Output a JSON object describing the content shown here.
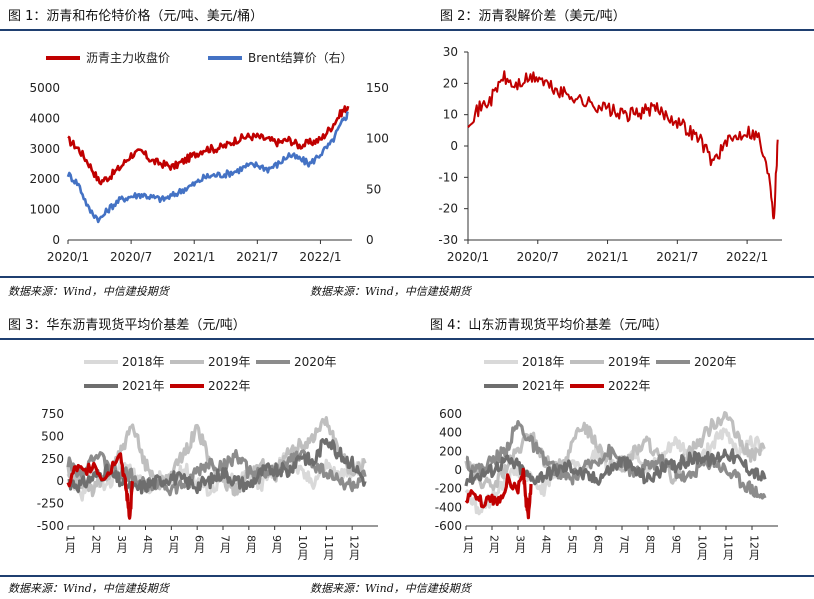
{
  "panels": [
    {
      "title": "图 1：沥青和布伦特价格（元/吨、美元/桶）",
      "source": "数据来源：Wind，中信建投期货",
      "chart_data": {
        "type": "line",
        "legend_placement": "top-left",
        "x_ticks": [
          "2020/1",
          "2020/7",
          "2021/1",
          "2021/7",
          "2022/1"
        ],
        "y_left": {
          "ticks": [
            "0",
            "1000",
            "2000",
            "3000",
            "4000",
            "5000"
          ],
          "ylim": [
            0,
            5000
          ]
        },
        "y_right": {
          "ticks": [
            "0",
            "50",
            "100",
            "150"
          ],
          "ylim": [
            0,
            150
          ]
        },
        "series": [
          {
            "name": "沥青主力收盘价",
            "axis": "left",
            "color": "#c00000",
            "x": [
              "2020-01",
              "2020-02",
              "2020-03",
              "2020-04",
              "2020-05",
              "2020-06",
              "2020-07",
              "2020-08",
              "2020-09",
              "2020-10",
              "2020-11",
              "2020-12",
              "2021-01",
              "2021-02",
              "2021-03",
              "2021-04",
              "2021-05",
              "2021-06",
              "2021-07",
              "2021-08",
              "2021-09",
              "2021-10",
              "2021-11",
              "2021-12",
              "2022-01",
              "2022-02",
              "2022-03",
              "2022-03-20"
            ],
            "y": [
              3300,
              3000,
              2500,
              1900,
              2100,
              2400,
              2800,
              2900,
              2600,
              2500,
              2400,
              2600,
              2800,
              3000,
              3000,
              3100,
              3300,
              3400,
              3400,
              3300,
              3200,
              3300,
              3100,
              3200,
              3300,
              3700,
              4200,
              4400
            ]
          },
          {
            "name": "Brent结算价（右）",
            "axis": "right",
            "color": "#4472c4",
            "x": [
              "2020-01",
              "2020-02",
              "2020-03",
              "2020-04",
              "2020-05",
              "2020-06",
              "2020-07",
              "2020-08",
              "2020-09",
              "2020-10",
              "2020-11",
              "2020-12",
              "2021-01",
              "2021-02",
              "2021-03",
              "2021-04",
              "2021-05",
              "2021-06",
              "2021-07",
              "2021-08",
              "2021-09",
              "2021-10",
              "2021-11",
              "2021-12",
              "2022-01",
              "2022-02",
              "2022-03",
              "2022-03-20"
            ],
            "y": [
              65,
              55,
              30,
              20,
              32,
              40,
              43,
              45,
              42,
              40,
              44,
              50,
              55,
              62,
              64,
              65,
              68,
              73,
              74,
              70,
              75,
              84,
              80,
              75,
              85,
              95,
              115,
              125
            ]
          }
        ]
      }
    },
    {
      "title": "图 2：沥青裂解价差（美元/吨）",
      "chart_data": {
        "type": "line",
        "x_ticks": [
          "2020/1",
          "2020/7",
          "2021/1",
          "2021/7",
          "2022/1"
        ],
        "y_ticks": [
          "-30",
          "-20",
          "-10",
          "0",
          "10",
          "20",
          "30"
        ],
        "ylim": [
          -30,
          30
        ],
        "series": [
          {
            "color": "#c00000",
            "x": [
              "2020-01",
              "2020-02",
              "2020-03",
              "2020-04",
              "2020-05",
              "2020-06",
              "2020-07",
              "2020-08",
              "2020-09",
              "2020-10",
              "2020-11",
              "2020-12",
              "2021-01",
              "2021-02",
              "2021-03",
              "2021-04",
              "2021-05",
              "2021-06",
              "2021-07",
              "2021-08",
              "2021-09",
              "2021-10",
              "2021-11",
              "2021-12",
              "2022-01",
              "2022-02",
              "2022-03",
              "2022-03-10",
              "2022-03-20"
            ],
            "y": [
              8,
              12,
              15,
              22,
              19,
              21,
              22,
              19,
              17,
              16,
              14,
              13,
              12,
              10,
              10,
              11,
              12,
              10,
              8,
              5,
              2,
              -5,
              0,
              3,
              5,
              3,
              -12,
              -23,
              2
            ]
          }
        ]
      }
    },
    {
      "title": "图 3：华东沥青现货平均价基差（元/吨）",
      "source": "数据来源：Wind，中信建投期货",
      "chart_data": {
        "type": "line",
        "legend_placement": "top",
        "x_ticks": [
          "1月",
          "2月",
          "3月",
          "4月",
          "5月",
          "6月",
          "7月",
          "8月",
          "9月",
          "10月",
          "11月",
          "12月"
        ],
        "y_ticks": [
          "-500",
          "-250",
          "0",
          "250",
          "500",
          "750"
        ],
        "ylim": [
          -500,
          750
        ],
        "series": [
          {
            "name": "2018年",
            "color": "#d9d9d9",
            "x": [
              1,
              1.5,
              2,
              2.5,
              3,
              3.5,
              4,
              4.5,
              5,
              5.5,
              6,
              6.5,
              7,
              7.5,
              8,
              8.5,
              9,
              9.5,
              10,
              10.5,
              11,
              11.5,
              12,
              12.5
            ],
            "y": [
              50,
              -200,
              100,
              -100,
              200,
              100,
              -100,
              50,
              -50,
              150,
              0,
              -100,
              50,
              0,
              100,
              -50,
              150,
              300,
              100,
              0,
              200,
              50,
              100,
              200
            ]
          },
          {
            "name": "2019年",
            "color": "#bfbfbf",
            "x": [
              1,
              1.5,
              2,
              2.5,
              3,
              3.5,
              4,
              4.5,
              5,
              5.5,
              6,
              6.5,
              7,
              7.5,
              8,
              8.5,
              9,
              9.5,
              10,
              10.5,
              11,
              11.5,
              12,
              12.5
            ],
            "y": [
              100,
              0,
              -100,
              50,
              300,
              600,
              200,
              -50,
              100,
              300,
              600,
              200,
              0,
              -100,
              100,
              200,
              50,
              300,
              400,
              500,
              700,
              300,
              100,
              200
            ]
          },
          {
            "name": "2020年",
            "color": "#8c8c8c",
            "x": [
              1,
              1.5,
              2,
              2.5,
              3,
              3.5,
              4,
              4.5,
              5,
              5.5,
              6,
              6.5,
              7,
              7.5,
              8,
              8.5,
              9,
              9.5,
              10,
              10.5,
              11,
              11.5,
              12,
              12.5
            ],
            "y": [
              200,
              100,
              300,
              200,
              100,
              50,
              -50,
              0,
              -100,
              -50,
              100,
              200,
              150,
              300,
              100,
              50,
              100,
              200,
              300,
              200,
              100,
              0,
              -50,
              50
            ]
          },
          {
            "name": "2021年",
            "color": "#6e6e6e",
            "x": [
              1,
              1.5,
              2,
              2.5,
              3,
              3.5,
              4,
              4.5,
              5,
              5.5,
              6,
              6.5,
              7,
              7.5,
              8,
              8.5,
              9,
              9.5,
              10,
              10.5,
              11,
              11.5,
              12,
              12.5
            ],
            "y": [
              0,
              -50,
              50,
              100,
              0,
              -100,
              -50,
              0,
              50,
              0,
              -50,
              0,
              100,
              0,
              -50,
              100,
              150,
              100,
              300,
              200,
              500,
              300,
              200,
              0
            ]
          },
          {
            "name": "2022年",
            "color": "#c00000",
            "x": [
              1,
              1.3,
              1.6,
              2,
              2.3,
              2.6,
              3,
              3.2,
              3.3,
              3.4,
              3.5
            ],
            "y": [
              -50,
              150,
              100,
              200,
              50,
              100,
              350,
              0,
              -200,
              -400,
              0
            ]
          }
        ]
      }
    },
    {
      "title": "图 4：山东沥青现货平均价基差（元/吨）",
      "source": "数据来源：Wind，中信建投期货",
      "chart_data": {
        "type": "line",
        "legend_placement": "top",
        "x_ticks": [
          "1月",
          "2月",
          "3月",
          "4月",
          "5月",
          "6月",
          "7月",
          "8月",
          "9月",
          "10月",
          "11月",
          "12月"
        ],
        "y_ticks": [
          "-600",
          "-400",
          "-200",
          "0",
          "200",
          "400",
          "600"
        ],
        "ylim": [
          -600,
          600
        ],
        "series": [
          {
            "name": "2018年",
            "color": "#d9d9d9",
            "x": [
              1,
              1.5,
              2,
              2.5,
              3,
              3.5,
              4,
              4.5,
              5,
              5.5,
              6,
              6.5,
              7,
              7.5,
              8,
              8.5,
              9,
              9.5,
              10,
              10.5,
              11,
              11.5,
              12,
              12.5
            ],
            "y": [
              -200,
              -450,
              -300,
              -100,
              0,
              -100,
              -200,
              0,
              100,
              0,
              200,
              50,
              100,
              200,
              0,
              100,
              300,
              200,
              100,
              300,
              400,
              200,
              300,
              250
            ]
          },
          {
            "name": "2019年",
            "color": "#bfbfbf",
            "x": [
              1,
              1.5,
              2,
              2.5,
              3,
              3.5,
              4,
              4.5,
              5,
              5.5,
              6,
              6.5,
              7,
              7.5,
              8,
              8.5,
              9,
              9.5,
              10,
              10.5,
              11,
              11.5,
              12,
              12.5
            ],
            "y": [
              100,
              -100,
              -200,
              0,
              200,
              400,
              100,
              0,
              200,
              500,
              300,
              100,
              0,
              200,
              300,
              100,
              -100,
              200,
              300,
              500,
              600,
              300,
              150,
              250
            ]
          },
          {
            "name": "2020年",
            "color": "#8c8c8c",
            "x": [
              1,
              1.5,
              2,
              2.5,
              3,
              3.5,
              4,
              4.5,
              5,
              5.5,
              6,
              6.5,
              7,
              7.5,
              8,
              8.5,
              9,
              9.5,
              10,
              10.5,
              11,
              11.5,
              12,
              12.5
            ],
            "y": [
              100,
              0,
              100,
              200,
              500,
              300,
              100,
              0,
              -100,
              0,
              100,
              200,
              100,
              -50,
              50,
              100,
              0,
              -100,
              50,
              100,
              0,
              -100,
              -200,
              -300
            ]
          },
          {
            "name": "2021年",
            "color": "#6e6e6e",
            "x": [
              1,
              1.5,
              2,
              2.5,
              3,
              3.5,
              4,
              4.5,
              5,
              5.5,
              6,
              6.5,
              7,
              7.5,
              8,
              8.5,
              9,
              9.5,
              10,
              10.5,
              11,
              11.5,
              12,
              12.5
            ],
            "y": [
              -100,
              -50,
              0,
              100,
              50,
              -100,
              -50,
              0,
              50,
              -50,
              -100,
              0,
              100,
              0,
              -100,
              0,
              50,
              100,
              150,
              100,
              200,
              100,
              0,
              -100
            ]
          },
          {
            "name": "2022年",
            "color": "#c00000",
            "x": [
              1,
              1.3,
              1.6,
              2,
              2.3,
              2.6,
              3,
              3.2,
              3.3,
              3.4,
              3.5
            ],
            "y": [
              -300,
              -250,
              -350,
              -300,
              -350,
              -100,
              -200,
              0,
              -300,
              -500,
              -150
            ]
          }
        ]
      }
    }
  ]
}
